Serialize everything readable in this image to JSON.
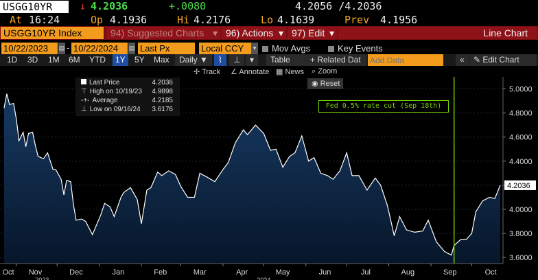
{
  "header": {
    "ticker": "USGG10YR",
    "arrow": "↓",
    "last": "4.2036",
    "change": "+.0080",
    "bid_ask": "4.2056 /4.2036",
    "at_label": "At",
    "time": "16:24",
    "open_label": "Op",
    "open": "4.1936",
    "high_label": "Hi",
    "high": "4.2176",
    "low_label": "Lo",
    "low": "4.1639",
    "prev_label": "Prev",
    "prev": "4.1956"
  },
  "menu": {
    "security": "USGG10YR Index",
    "suggested": "94) Suggested Charts",
    "actions": "96) Actions",
    "edit": "97) Edit",
    "chart_type": "Line Chart",
    "caret": "▾"
  },
  "settings": {
    "start_date": "10/22/2023",
    "end_date": "10/22/2024",
    "field": "Last Px",
    "currency": "Local CCY",
    "mov_avgs": "Mov Avgs",
    "key_events": "Key Events"
  },
  "ranges": [
    "1D",
    "3D",
    "1M",
    "6M",
    "YTD",
    "1Y",
    "5Y",
    "Max"
  ],
  "active_range": "1Y",
  "frequency": "Daily ▼",
  "table_label": "Table",
  "related_label": "+ Related Dat",
  "add_data_placeholder": "Add Data",
  "collapse_label": "«",
  "edit_chart": "Edit Chart",
  "toolbar": {
    "track": "Track",
    "annotate": "Annotate",
    "news": "News",
    "zoom": "Zoom",
    "reset": "Reset"
  },
  "legend": {
    "last_label": "Last Price",
    "last_value": "4.2036",
    "high_label": "High on 10/19/23",
    "high_value": "4.9898",
    "avg_label": "Average",
    "avg_value": "4.2185",
    "low_label": "Low on 09/16/24",
    "low_value": "3.6176"
  },
  "annotation": "Fed 0.5% rate cut (Sep 18th)",
  "colors": {
    "line": "#ffffff",
    "area_top": "#173a63",
    "area_bottom": "#07162a",
    "event_line": "#7ad600",
    "price_label_bg": "#ffffff"
  },
  "chart_data": {
    "type": "area",
    "ylim": [
      3.55,
      5.1
    ],
    "yticks": [
      3.6,
      3.8,
      4.0,
      4.2,
      4.4,
      4.6,
      4.8,
      5.0
    ],
    "ytick_labels": [
      "3.6000",
      "3.8000",
      "4.0000",
      "4.2000",
      "4.4000",
      "4.6000",
      "4.8000",
      "5.0000"
    ],
    "last_value_label": "4.2036",
    "months": [
      "Oct",
      "Nov",
      "Dec",
      "Jan",
      "Feb",
      "Mar",
      "Apr",
      "May",
      "Jun",
      "Jul",
      "Aug",
      "Sep",
      "Oct"
    ],
    "years": [
      "2023",
      "2024"
    ],
    "event_x": "2024-09-18",
    "x": [
      "2023-10-23",
      "2023-10-25",
      "2023-10-27",
      "2023-10-30",
      "2023-11-01",
      "2023-11-03",
      "2023-11-06",
      "2023-11-08",
      "2023-11-10",
      "2023-11-13",
      "2023-11-15",
      "2023-11-17",
      "2023-11-21",
      "2023-11-24",
      "2023-11-28",
      "2023-11-30",
      "2023-12-04",
      "2023-12-06",
      "2023-12-08",
      "2023-12-11",
      "2023-12-13",
      "2023-12-15",
      "2023-12-19",
      "2023-12-22",
      "2023-12-27",
      "2024-01-02",
      "2024-01-05",
      "2024-01-09",
      "2024-01-12",
      "2024-01-17",
      "2024-01-19",
      "2024-01-24",
      "2024-01-29",
      "2024-02-01",
      "2024-02-05",
      "2024-02-08",
      "2024-02-13",
      "2024-02-16",
      "2024-02-21",
      "2024-02-26",
      "2024-03-01",
      "2024-03-06",
      "2024-03-11",
      "2024-03-15",
      "2024-03-20",
      "2024-03-26",
      "2024-04-01",
      "2024-04-05",
      "2024-04-10",
      "2024-04-16",
      "2024-04-19",
      "2024-04-25",
      "2024-05-01",
      "2024-05-06",
      "2024-05-10",
      "2024-05-15",
      "2024-05-20",
      "2024-05-24",
      "2024-05-29",
      "2024-06-03",
      "2024-06-07",
      "2024-06-12",
      "2024-06-17",
      "2024-06-21",
      "2024-06-26",
      "2024-07-01",
      "2024-07-05",
      "2024-07-10",
      "2024-07-16",
      "2024-07-22",
      "2024-07-26",
      "2024-07-31",
      "2024-08-05",
      "2024-08-09",
      "2024-08-14",
      "2024-08-20",
      "2024-08-26",
      "2024-08-30",
      "2024-09-05",
      "2024-09-11",
      "2024-09-16",
      "2024-09-18",
      "2024-09-23",
      "2024-09-27",
      "2024-10-01",
      "2024-10-04",
      "2024-10-09",
      "2024-10-14",
      "2024-10-18",
      "2024-10-22"
    ],
    "y": [
      4.84,
      4.96,
      4.87,
      4.88,
      4.75,
      4.57,
      4.64,
      4.52,
      4.63,
      4.64,
      4.53,
      4.44,
      4.42,
      4.47,
      4.33,
      4.33,
      4.25,
      4.12,
      4.24,
      4.23,
      4.04,
      3.91,
      3.92,
      3.9,
      3.79,
      3.95,
      4.05,
      4.02,
      3.94,
      4.1,
      4.14,
      4.18,
      4.08,
      3.88,
      4.16,
      4.18,
      4.31,
      4.28,
      4.32,
      4.29,
      4.19,
      4.1,
      4.1,
      4.3,
      4.27,
      4.23,
      4.33,
      4.39,
      4.55,
      4.66,
      4.62,
      4.7,
      4.63,
      4.49,
      4.5,
      4.35,
      4.44,
      4.47,
      4.61,
      4.4,
      4.43,
      4.3,
      4.28,
      4.25,
      4.32,
      4.47,
      4.28,
      4.28,
      4.16,
      4.26,
      4.2,
      4.03,
      3.78,
      3.94,
      3.83,
      3.81,
      3.82,
      3.91,
      3.73,
      3.65,
      3.62,
      3.7,
      3.75,
      3.75,
      3.8,
      3.98,
      4.07,
      4.1,
      4.09,
      4.2
    ]
  }
}
